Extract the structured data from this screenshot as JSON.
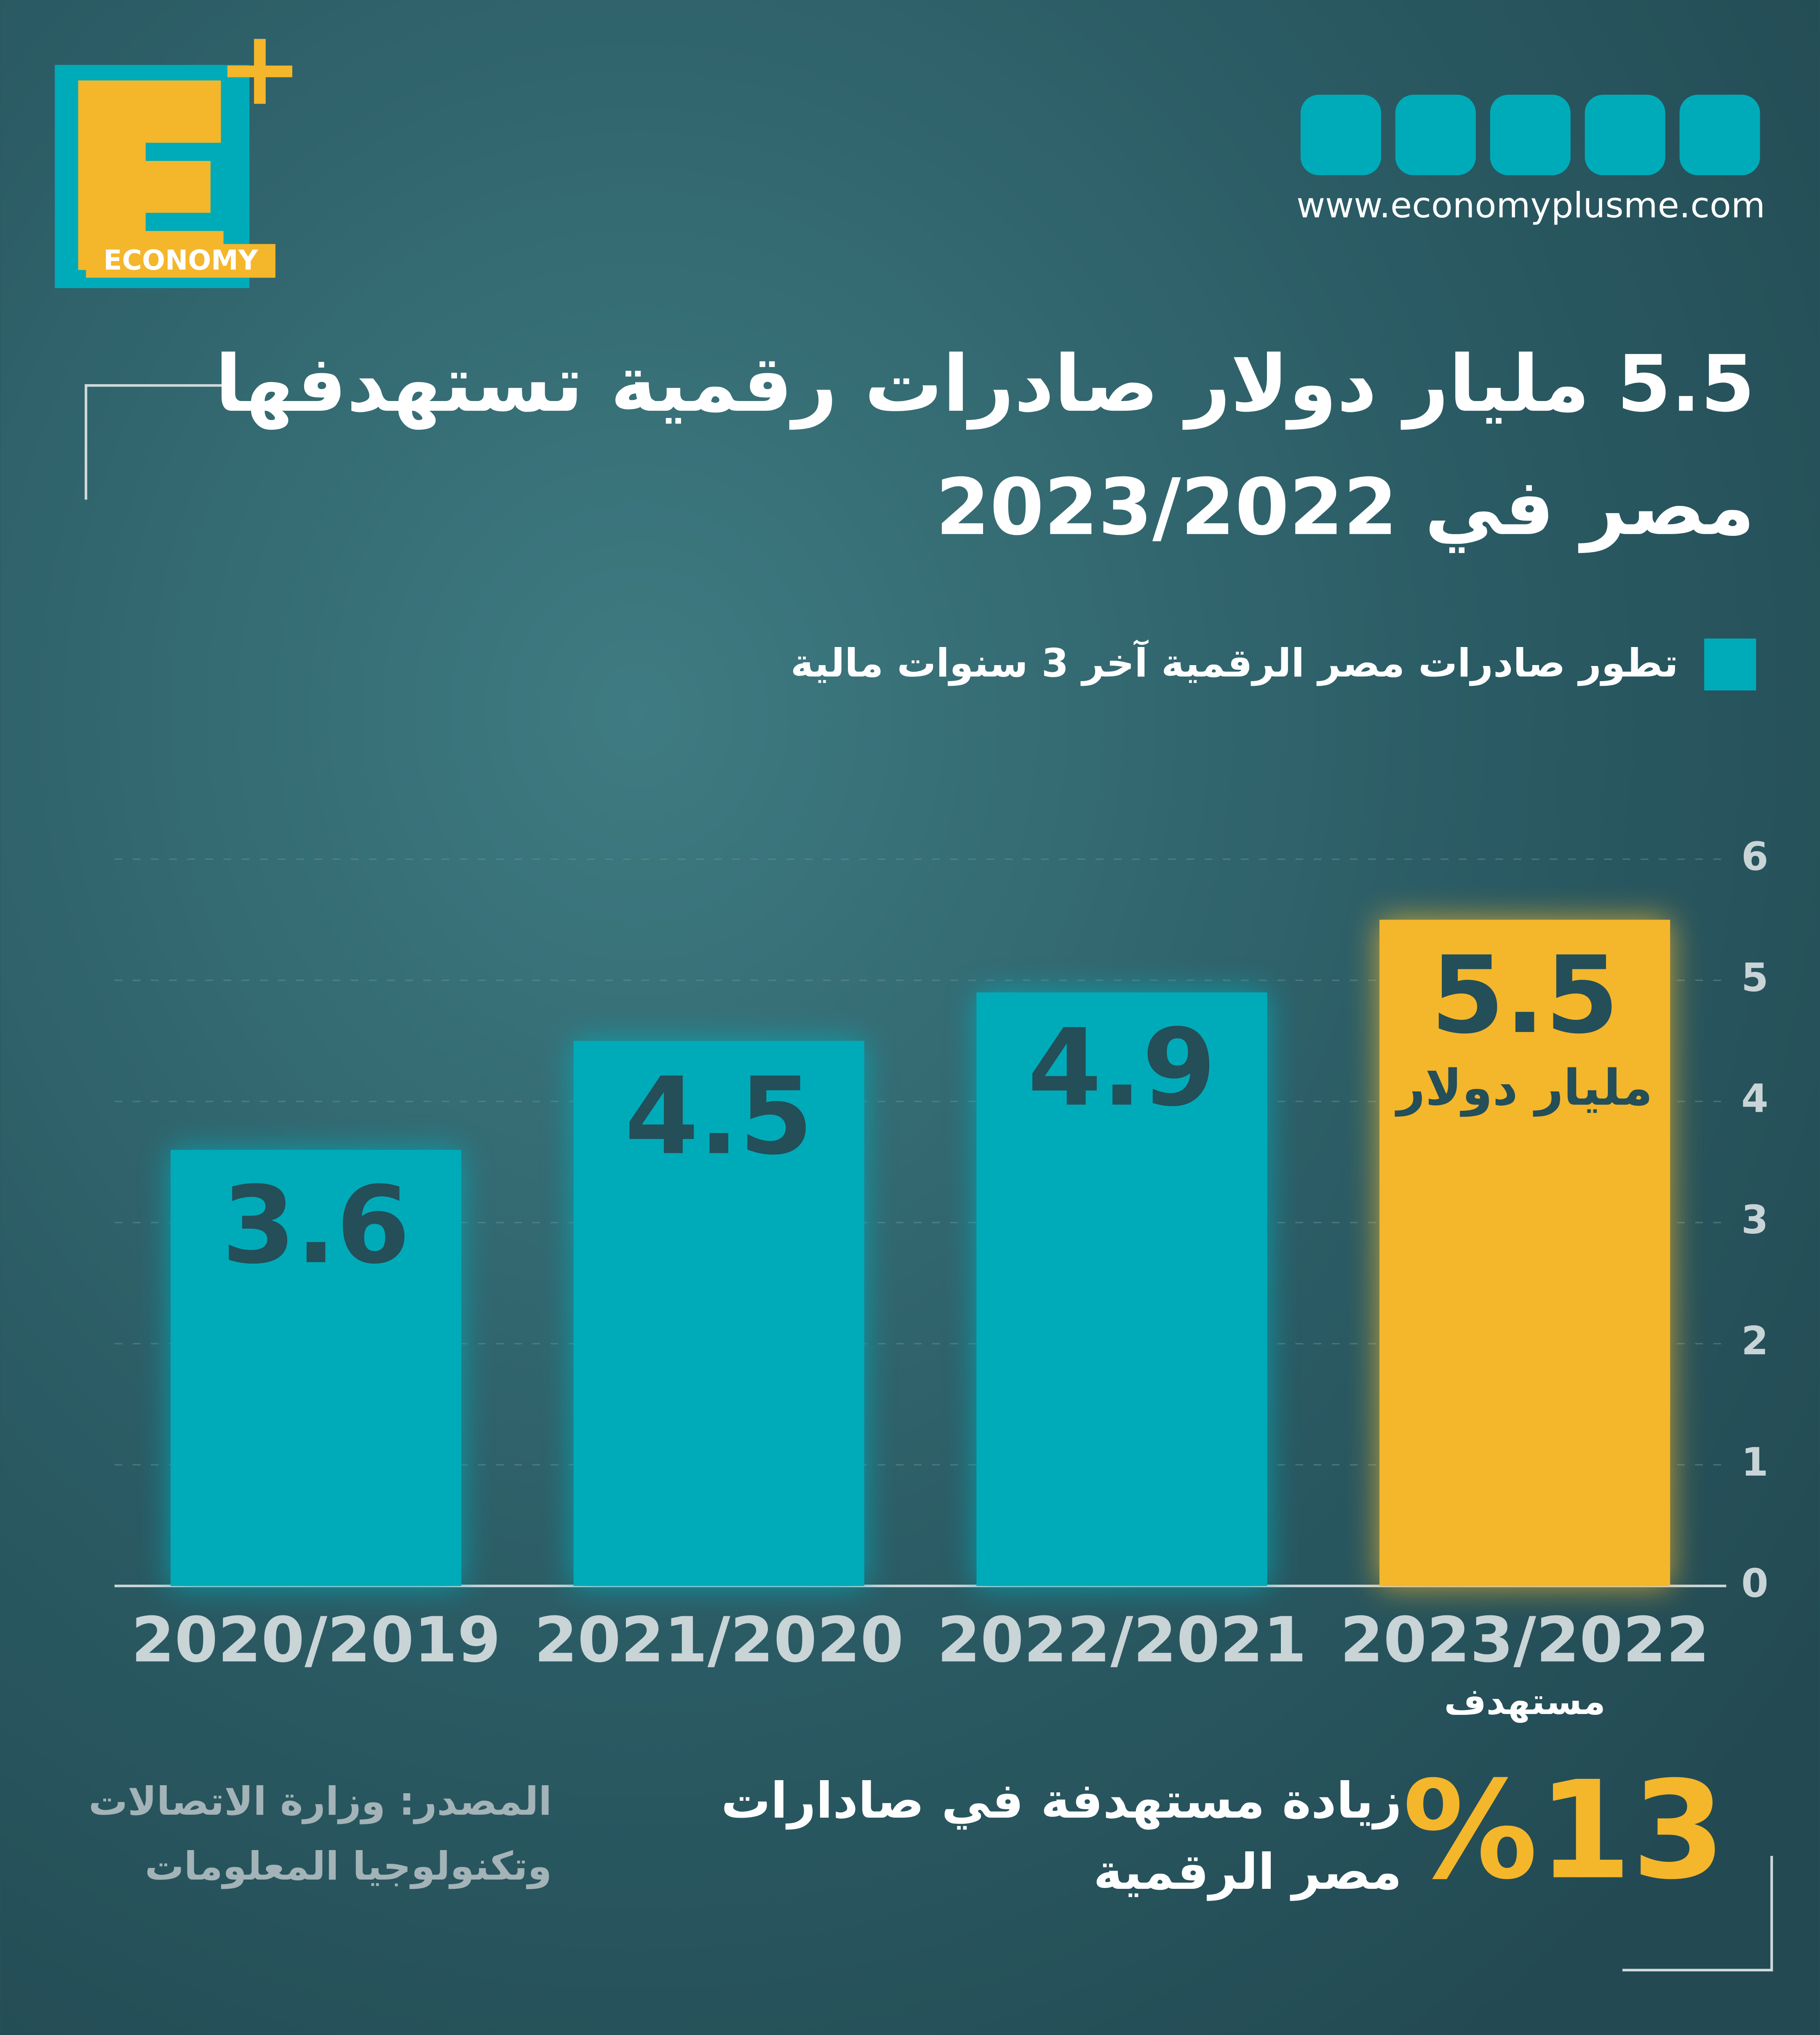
{
  "brand": "ECONOMY",
  "website": "www.economyplusme.com",
  "chart_data": {
    "type": "bar",
    "title": [
      "5.5 مليار دولار صادرات رقمية تستهدفها",
      "مصر في 2023/2022"
    ],
    "categories": [
      "2020/2019",
      "2021/2020",
      "2022/2021",
      "2023/2022"
    ],
    "series": [
      {
        "name": "تطور صادرات مصر الرقمية آخر 3 سنوات مالية",
        "color": "#00abb9",
        "values": [
          3.6,
          4.5,
          4.9,
          5.5
        ],
        "colors": [
          "#00abb9",
          "#00abb9",
          "#00abb9",
          "#f4b62b"
        ]
      }
    ],
    "unit_label": "مليار دولار",
    "target_label": "مستهدف",
    "ylim": [
      0,
      6
    ],
    "yticks": [
      0,
      1,
      2,
      3,
      4,
      5,
      6
    ],
    "grid": true,
    "highlight": "%13",
    "highlight_text": [
      "زيادة مستهدفة في صادارات",
      "مصر الرقمية"
    ],
    "source": [
      "المصدر: وزارة الاتصالات",
      "وتكنولوجيا المعلومات"
    ]
  }
}
